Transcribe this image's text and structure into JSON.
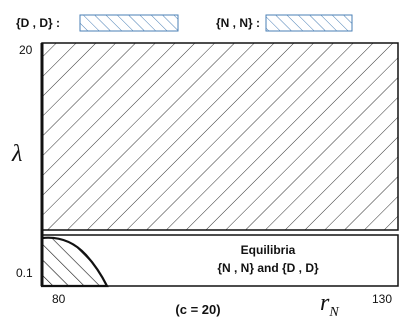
{
  "chart_data": {
    "type": "area",
    "xlabel": "r_N",
    "ylabel": "λ",
    "xlabel_main": "r",
    "xlabel_sub": "N",
    "parameter_note": "(c = 20)",
    "x_range": [
      80,
      130
    ],
    "x_ticks": [
      "80",
      "130"
    ],
    "y_ticks": [
      "0.1",
      "20"
    ],
    "legend": {
      "placement": "top",
      "entries": [
        {
          "label": "{D , D} :",
          "pattern": "hatch-down-left",
          "color": "#4a7fb5"
        },
        {
          "label": "{N , N} :",
          "pattern": "hatch-down-left",
          "color": "#4a7fb5"
        }
      ]
    },
    "regions": [
      {
        "name": "upper",
        "pattern": "hatch-down-right",
        "color": "#333333",
        "y_range": [
          0.1,
          20
        ]
      },
      {
        "name": "lower-left-corner",
        "pattern": "hatch-up-right",
        "color": "#111111",
        "boundary": [
          [
            80,
            0.1
          ],
          [
            80,
            1.0
          ],
          [
            84,
            0.95
          ],
          [
            87,
            0.75
          ],
          [
            89.5,
            0.3
          ],
          [
            90.5,
            0.1
          ]
        ]
      }
    ],
    "annotation": {
      "title": "Equilibria",
      "text": "{N , N} and {D , D}"
    }
  }
}
